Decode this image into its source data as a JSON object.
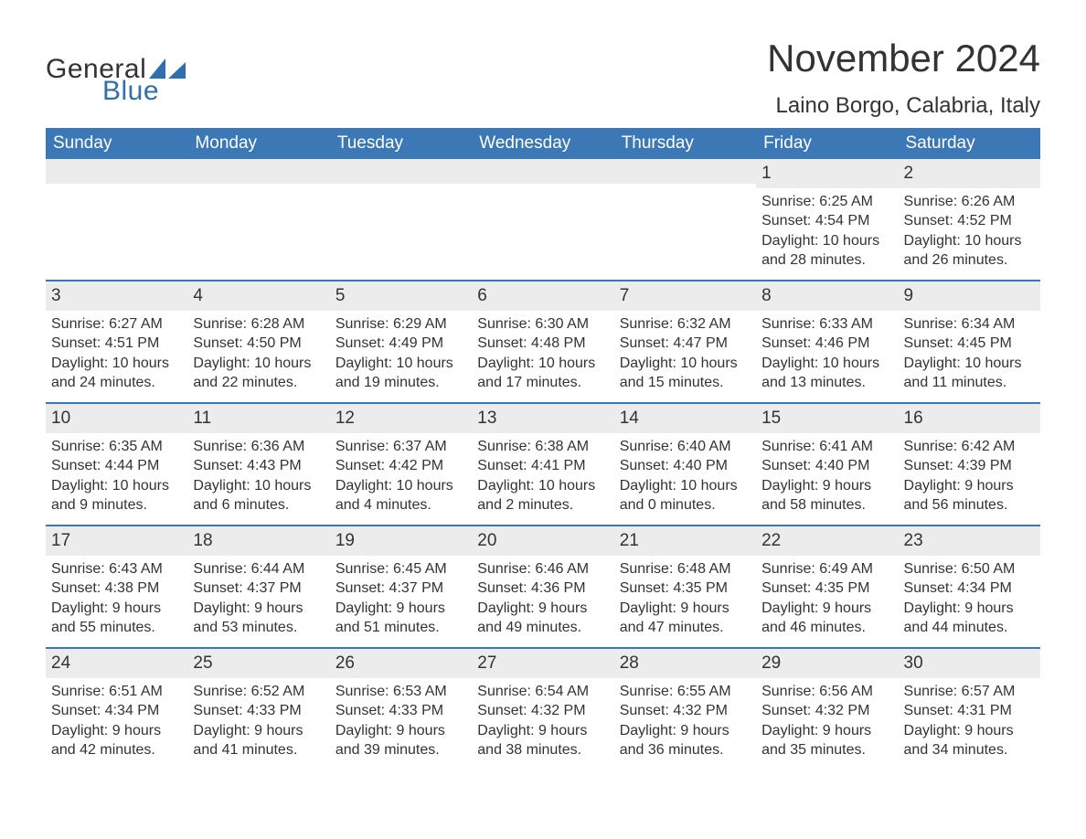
{
  "brand": {
    "text1": "General",
    "text2": "Blue",
    "text1_color": "#333333",
    "text2_color": "#2f6fb0",
    "shape_color": "#2f6fb0"
  },
  "title": {
    "month": "November 2024",
    "location": "Laino Borgo, Calabria, Italy",
    "month_fontsize": 42,
    "location_fontsize": 24
  },
  "colors": {
    "header_bg": "#3b78b5",
    "header_text": "#ffffff",
    "daynum_bg": "#ececec",
    "border": "#3b78b5",
    "text": "#333333",
    "background": "#ffffff"
  },
  "weekdays": [
    "Sunday",
    "Monday",
    "Tuesday",
    "Wednesday",
    "Thursday",
    "Friday",
    "Saturday"
  ],
  "weeks": [
    [
      {
        "empty": true
      },
      {
        "empty": true
      },
      {
        "empty": true
      },
      {
        "empty": true
      },
      {
        "empty": true
      },
      {
        "day": "1",
        "sunrise": "Sunrise: 6:25 AM",
        "sunset": "Sunset: 4:54 PM",
        "daylight1": "Daylight: 10 hours",
        "daylight2": "and 28 minutes."
      },
      {
        "day": "2",
        "sunrise": "Sunrise: 6:26 AM",
        "sunset": "Sunset: 4:52 PM",
        "daylight1": "Daylight: 10 hours",
        "daylight2": "and 26 minutes."
      }
    ],
    [
      {
        "day": "3",
        "sunrise": "Sunrise: 6:27 AM",
        "sunset": "Sunset: 4:51 PM",
        "daylight1": "Daylight: 10 hours",
        "daylight2": "and 24 minutes."
      },
      {
        "day": "4",
        "sunrise": "Sunrise: 6:28 AM",
        "sunset": "Sunset: 4:50 PM",
        "daylight1": "Daylight: 10 hours",
        "daylight2": "and 22 minutes."
      },
      {
        "day": "5",
        "sunrise": "Sunrise: 6:29 AM",
        "sunset": "Sunset: 4:49 PM",
        "daylight1": "Daylight: 10 hours",
        "daylight2": "and 19 minutes."
      },
      {
        "day": "6",
        "sunrise": "Sunrise: 6:30 AM",
        "sunset": "Sunset: 4:48 PM",
        "daylight1": "Daylight: 10 hours",
        "daylight2": "and 17 minutes."
      },
      {
        "day": "7",
        "sunrise": "Sunrise: 6:32 AM",
        "sunset": "Sunset: 4:47 PM",
        "daylight1": "Daylight: 10 hours",
        "daylight2": "and 15 minutes."
      },
      {
        "day": "8",
        "sunrise": "Sunrise: 6:33 AM",
        "sunset": "Sunset: 4:46 PM",
        "daylight1": "Daylight: 10 hours",
        "daylight2": "and 13 minutes."
      },
      {
        "day": "9",
        "sunrise": "Sunrise: 6:34 AM",
        "sunset": "Sunset: 4:45 PM",
        "daylight1": "Daylight: 10 hours",
        "daylight2": "and 11 minutes."
      }
    ],
    [
      {
        "day": "10",
        "sunrise": "Sunrise: 6:35 AM",
        "sunset": "Sunset: 4:44 PM",
        "daylight1": "Daylight: 10 hours",
        "daylight2": "and 9 minutes."
      },
      {
        "day": "11",
        "sunrise": "Sunrise: 6:36 AM",
        "sunset": "Sunset: 4:43 PM",
        "daylight1": "Daylight: 10 hours",
        "daylight2": "and 6 minutes."
      },
      {
        "day": "12",
        "sunrise": "Sunrise: 6:37 AM",
        "sunset": "Sunset: 4:42 PM",
        "daylight1": "Daylight: 10 hours",
        "daylight2": "and 4 minutes."
      },
      {
        "day": "13",
        "sunrise": "Sunrise: 6:38 AM",
        "sunset": "Sunset: 4:41 PM",
        "daylight1": "Daylight: 10 hours",
        "daylight2": "and 2 minutes."
      },
      {
        "day": "14",
        "sunrise": "Sunrise: 6:40 AM",
        "sunset": "Sunset: 4:40 PM",
        "daylight1": "Daylight: 10 hours",
        "daylight2": "and 0 minutes."
      },
      {
        "day": "15",
        "sunrise": "Sunrise: 6:41 AM",
        "sunset": "Sunset: 4:40 PM",
        "daylight1": "Daylight: 9 hours",
        "daylight2": "and 58 minutes."
      },
      {
        "day": "16",
        "sunrise": "Sunrise: 6:42 AM",
        "sunset": "Sunset: 4:39 PM",
        "daylight1": "Daylight: 9 hours",
        "daylight2": "and 56 minutes."
      }
    ],
    [
      {
        "day": "17",
        "sunrise": "Sunrise: 6:43 AM",
        "sunset": "Sunset: 4:38 PM",
        "daylight1": "Daylight: 9 hours",
        "daylight2": "and 55 minutes."
      },
      {
        "day": "18",
        "sunrise": "Sunrise: 6:44 AM",
        "sunset": "Sunset: 4:37 PM",
        "daylight1": "Daylight: 9 hours",
        "daylight2": "and 53 minutes."
      },
      {
        "day": "19",
        "sunrise": "Sunrise: 6:45 AM",
        "sunset": "Sunset: 4:37 PM",
        "daylight1": "Daylight: 9 hours",
        "daylight2": "and 51 minutes."
      },
      {
        "day": "20",
        "sunrise": "Sunrise: 6:46 AM",
        "sunset": "Sunset: 4:36 PM",
        "daylight1": "Daylight: 9 hours",
        "daylight2": "and 49 minutes."
      },
      {
        "day": "21",
        "sunrise": "Sunrise: 6:48 AM",
        "sunset": "Sunset: 4:35 PM",
        "daylight1": "Daylight: 9 hours",
        "daylight2": "and 47 minutes."
      },
      {
        "day": "22",
        "sunrise": "Sunrise: 6:49 AM",
        "sunset": "Sunset: 4:35 PM",
        "daylight1": "Daylight: 9 hours",
        "daylight2": "and 46 minutes."
      },
      {
        "day": "23",
        "sunrise": "Sunrise: 6:50 AM",
        "sunset": "Sunset: 4:34 PM",
        "daylight1": "Daylight: 9 hours",
        "daylight2": "and 44 minutes."
      }
    ],
    [
      {
        "day": "24",
        "sunrise": "Sunrise: 6:51 AM",
        "sunset": "Sunset: 4:34 PM",
        "daylight1": "Daylight: 9 hours",
        "daylight2": "and 42 minutes."
      },
      {
        "day": "25",
        "sunrise": "Sunrise: 6:52 AM",
        "sunset": "Sunset: 4:33 PM",
        "daylight1": "Daylight: 9 hours",
        "daylight2": "and 41 minutes."
      },
      {
        "day": "26",
        "sunrise": "Sunrise: 6:53 AM",
        "sunset": "Sunset: 4:33 PM",
        "daylight1": "Daylight: 9 hours",
        "daylight2": "and 39 minutes."
      },
      {
        "day": "27",
        "sunrise": "Sunrise: 6:54 AM",
        "sunset": "Sunset: 4:32 PM",
        "daylight1": "Daylight: 9 hours",
        "daylight2": "and 38 minutes."
      },
      {
        "day": "28",
        "sunrise": "Sunrise: 6:55 AM",
        "sunset": "Sunset: 4:32 PM",
        "daylight1": "Daylight: 9 hours",
        "daylight2": "and 36 minutes."
      },
      {
        "day": "29",
        "sunrise": "Sunrise: 6:56 AM",
        "sunset": "Sunset: 4:32 PM",
        "daylight1": "Daylight: 9 hours",
        "daylight2": "and 35 minutes."
      },
      {
        "day": "30",
        "sunrise": "Sunrise: 6:57 AM",
        "sunset": "Sunset: 4:31 PM",
        "daylight1": "Daylight: 9 hours",
        "daylight2": "and 34 minutes."
      }
    ]
  ]
}
